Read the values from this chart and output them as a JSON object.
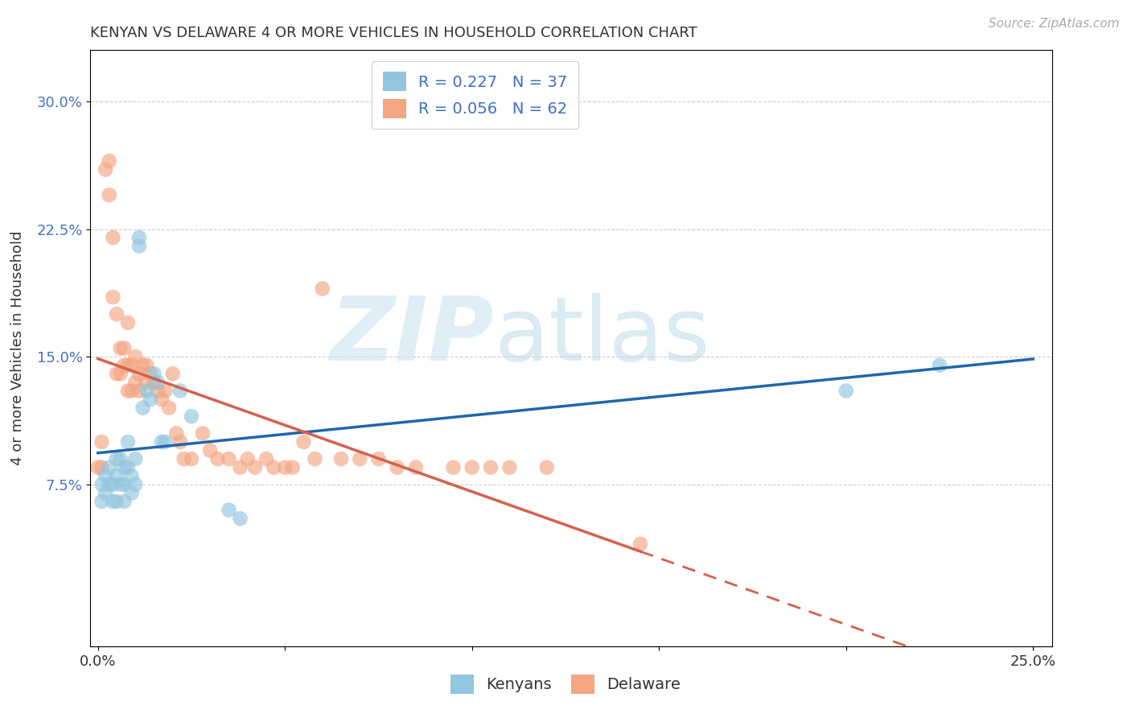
{
  "title": "KENYAN VS DELAWARE 4 OR MORE VEHICLES IN HOUSEHOLD CORRELATION CHART",
  "source": "Source: ZipAtlas.com",
  "ylabel": "4 or more Vehicles in Household",
  "xlabel_ticks": [
    "0.0%",
    "",
    "",
    "",
    "",
    "25.0%"
  ],
  "xlabel_vals": [
    0.0,
    0.05,
    0.1,
    0.15,
    0.2,
    0.25
  ],
  "ylabel_ticks": [
    "7.5%",
    "15.0%",
    "22.5%",
    "30.0%"
  ],
  "ylabel_vals": [
    0.075,
    0.15,
    0.225,
    0.3
  ],
  "xlim": [
    -0.002,
    0.255
  ],
  "ylim": [
    -0.02,
    0.33
  ],
  "legend1_label": "R = 0.227   N = 37",
  "legend2_label": "R = 0.056   N = 62",
  "legend_label1_blue": "Kenyans",
  "legend_label2_pink": "Delaware",
  "blue_color": "#92c5de",
  "pink_color": "#f4a582",
  "blue_scatter_color": "#92c5de",
  "pink_scatter_color": "#f4a582",
  "blue_line_color": "#2166ac",
  "pink_line_color": "#d6604d",
  "kenyans_x": [
    0.001,
    0.001,
    0.002,
    0.002,
    0.003,
    0.003,
    0.004,
    0.004,
    0.005,
    0.005,
    0.005,
    0.006,
    0.006,
    0.007,
    0.007,
    0.007,
    0.008,
    0.008,
    0.009,
    0.009,
    0.01,
    0.01,
    0.011,
    0.011,
    0.012,
    0.013,
    0.014,
    0.015,
    0.016,
    0.017,
    0.018,
    0.022,
    0.025,
    0.035,
    0.038,
    0.2,
    0.225
  ],
  "kenyans_y": [
    0.065,
    0.075,
    0.08,
    0.07,
    0.085,
    0.075,
    0.075,
    0.065,
    0.09,
    0.08,
    0.065,
    0.09,
    0.075,
    0.085,
    0.075,
    0.065,
    0.1,
    0.085,
    0.08,
    0.07,
    0.09,
    0.075,
    0.22,
    0.215,
    0.12,
    0.13,
    0.125,
    0.14,
    0.135,
    0.1,
    0.1,
    0.13,
    0.115,
    0.06,
    0.055,
    0.13,
    0.145
  ],
  "delaware_x": [
    0.0,
    0.001,
    0.001,
    0.002,
    0.003,
    0.003,
    0.004,
    0.004,
    0.005,
    0.005,
    0.006,
    0.006,
    0.007,
    0.007,
    0.008,
    0.008,
    0.008,
    0.009,
    0.009,
    0.01,
    0.01,
    0.011,
    0.011,
    0.012,
    0.013,
    0.013,
    0.014,
    0.015,
    0.016,
    0.017,
    0.018,
    0.019,
    0.02,
    0.021,
    0.022,
    0.023,
    0.025,
    0.028,
    0.03,
    0.032,
    0.035,
    0.038,
    0.04,
    0.042,
    0.045,
    0.047,
    0.05,
    0.052,
    0.055,
    0.058,
    0.06,
    0.065,
    0.07,
    0.075,
    0.08,
    0.085,
    0.095,
    0.1,
    0.105,
    0.11,
    0.12,
    0.145
  ],
  "delaware_y": [
    0.085,
    0.085,
    0.1,
    0.26,
    0.265,
    0.245,
    0.22,
    0.185,
    0.14,
    0.175,
    0.14,
    0.155,
    0.145,
    0.155,
    0.13,
    0.145,
    0.17,
    0.13,
    0.145,
    0.135,
    0.15,
    0.13,
    0.14,
    0.145,
    0.135,
    0.145,
    0.14,
    0.135,
    0.13,
    0.125,
    0.13,
    0.12,
    0.14,
    0.105,
    0.1,
    0.09,
    0.09,
    0.105,
    0.095,
    0.09,
    0.09,
    0.085,
    0.09,
    0.085,
    0.09,
    0.085,
    0.085,
    0.085,
    0.1,
    0.09,
    0.19,
    0.09,
    0.09,
    0.09,
    0.085,
    0.085,
    0.085,
    0.085,
    0.085,
    0.085,
    0.085,
    0.04
  ]
}
